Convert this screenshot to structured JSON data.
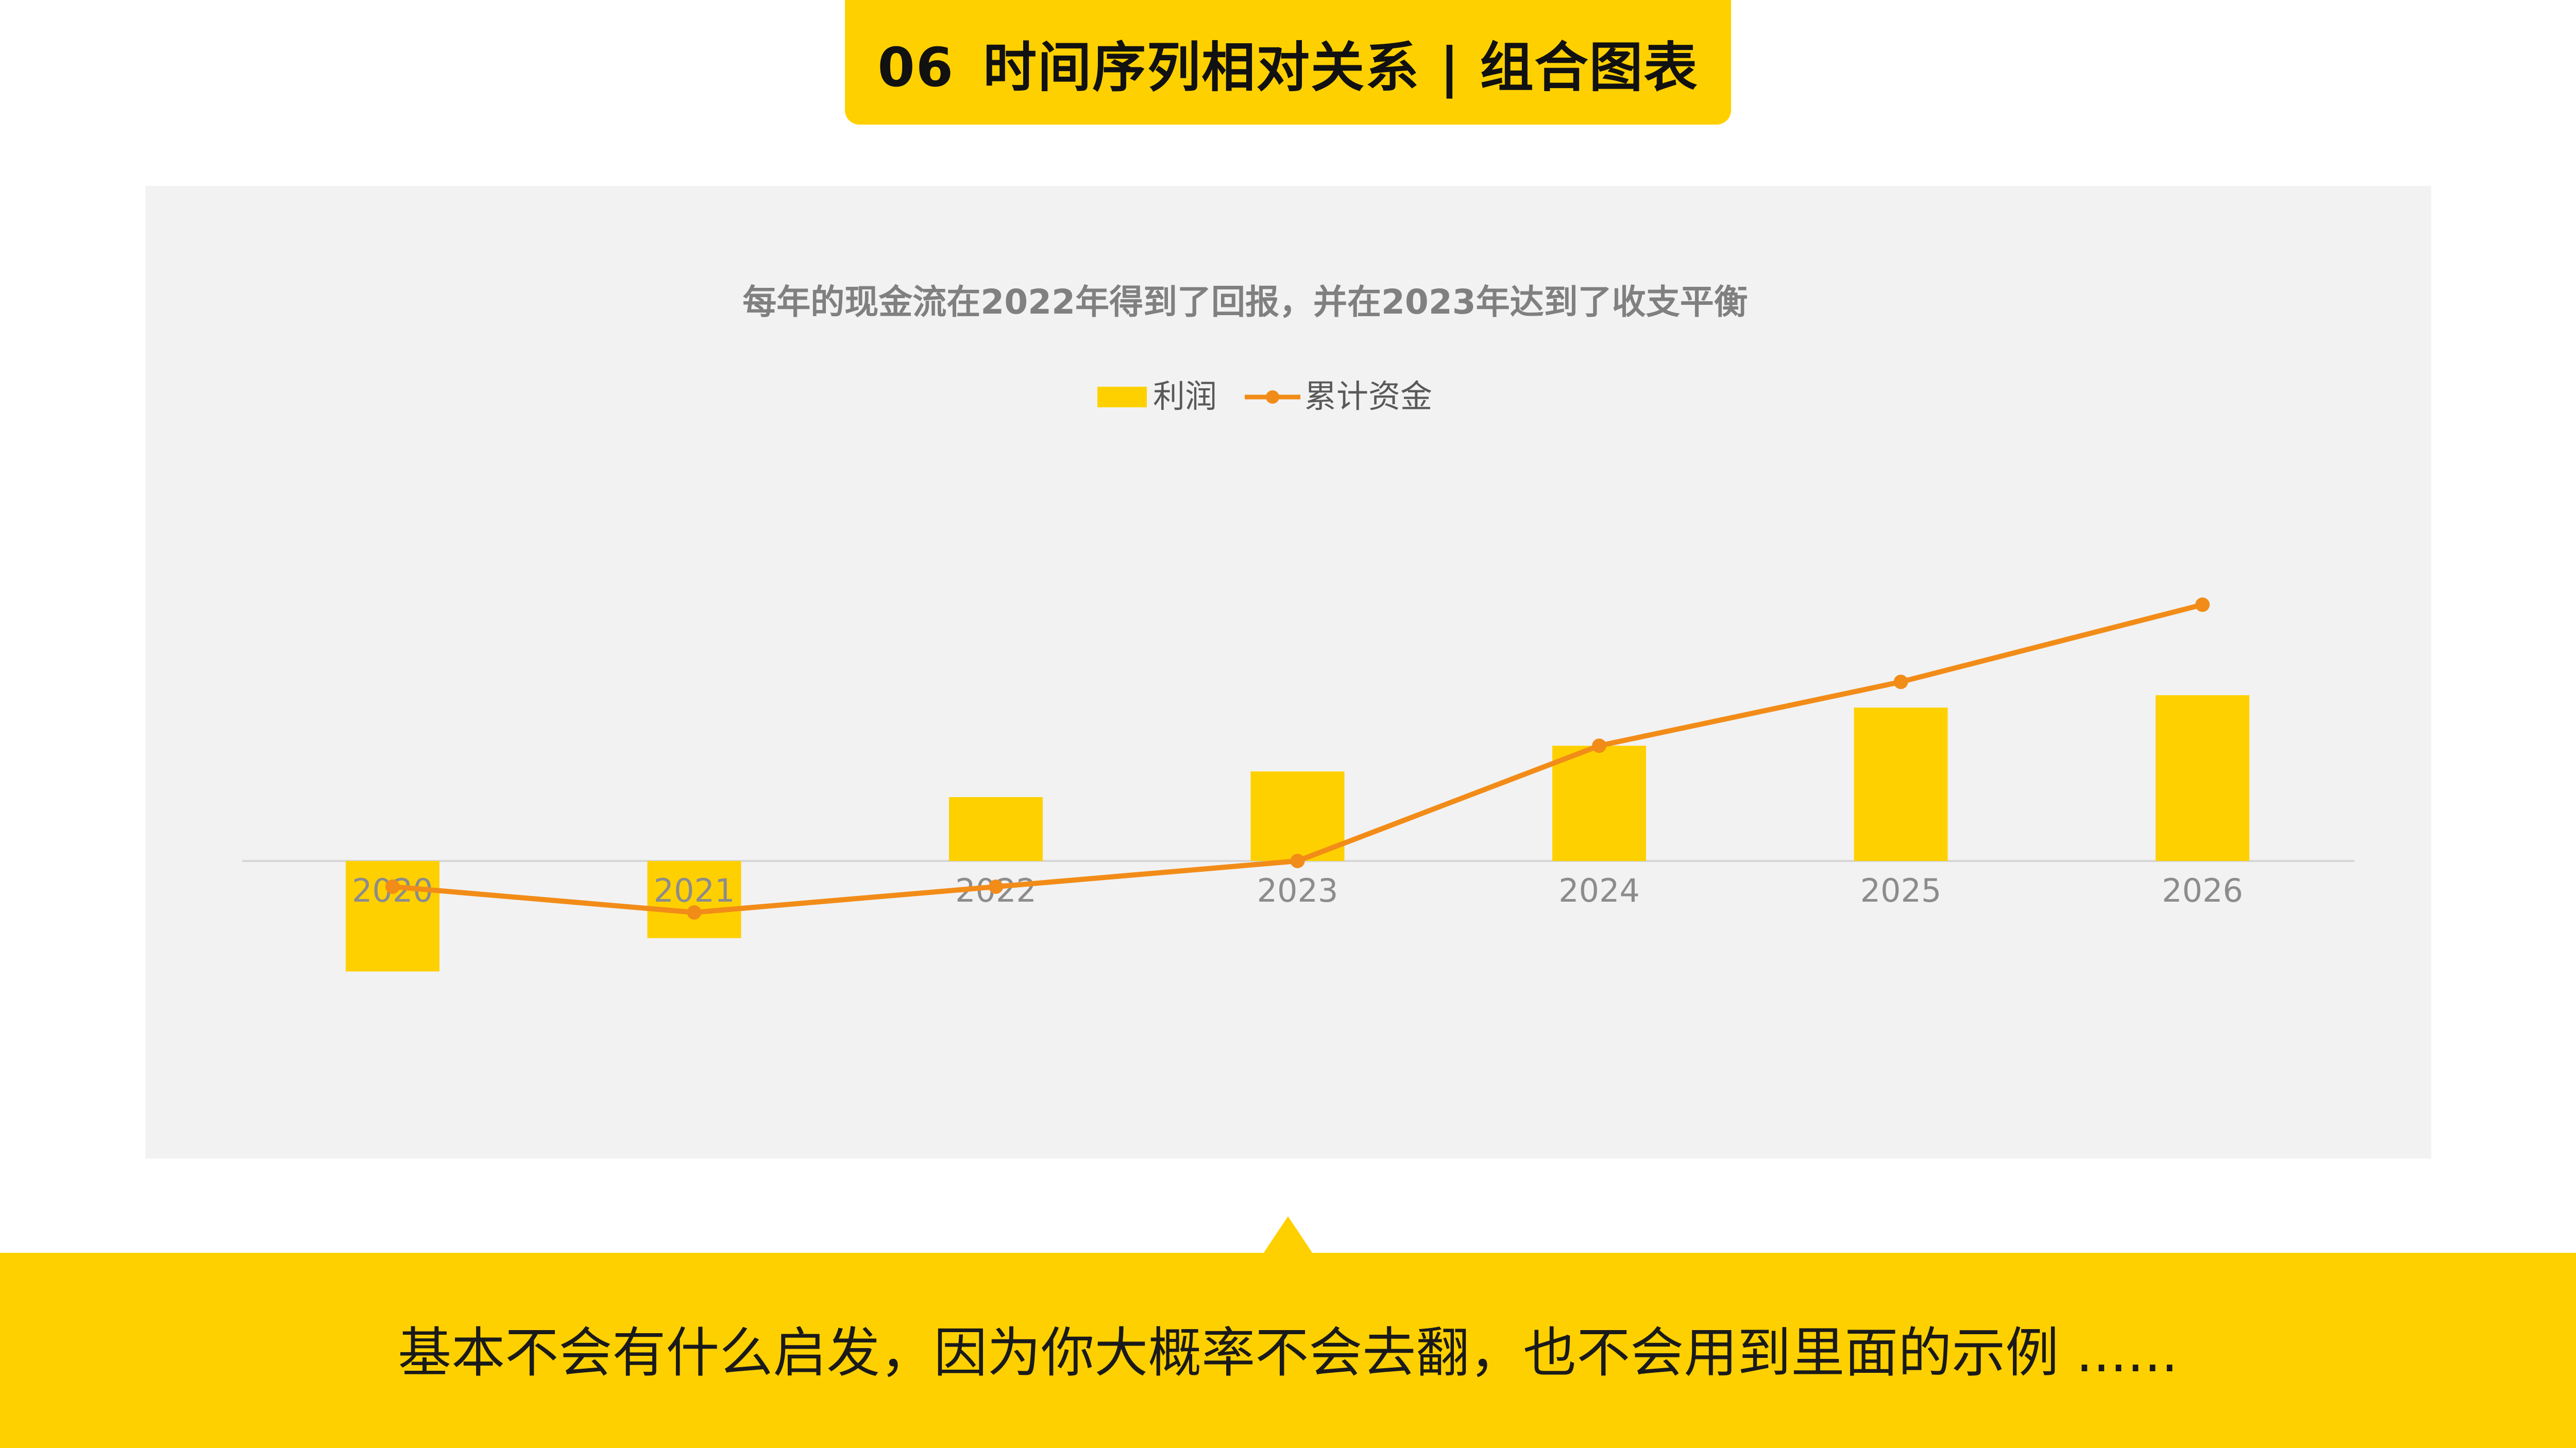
{
  "header": {
    "number": "06",
    "title": "时间序列相对关系 | 组合图表"
  },
  "caption": {
    "text": "基本不会有什么启发，因为你大概率不会去翻，也不会用到里面的示例 ......"
  },
  "colors": {
    "accent": "#FFD000",
    "line": "#F28C18",
    "panel": "#F2F2F2",
    "title_gray": "#808080",
    "tick_gray": "#8C8C8C"
  },
  "chart_data": {
    "type": "bar+line",
    "title": "每年的现金流在2022年得到了回报，并在2023年达到了收支平衡",
    "categories": [
      "2020",
      "2021",
      "2022",
      "2023",
      "2024",
      "2025",
      "2026"
    ],
    "series": [
      {
        "name": "利润",
        "type": "bar",
        "color": "#FFD000",
        "values": [
          -116,
          -81,
          67,
          94,
          121,
          161,
          174
        ]
      },
      {
        "name": "累计资金",
        "type": "line",
        "color": "#F28C18",
        "values": [
          -27,
          -54,
          -27,
          0,
          121,
          188,
          269
        ]
      }
    ],
    "ylim": [
      -180,
      300
    ],
    "grid": false,
    "legend": "top-center"
  }
}
